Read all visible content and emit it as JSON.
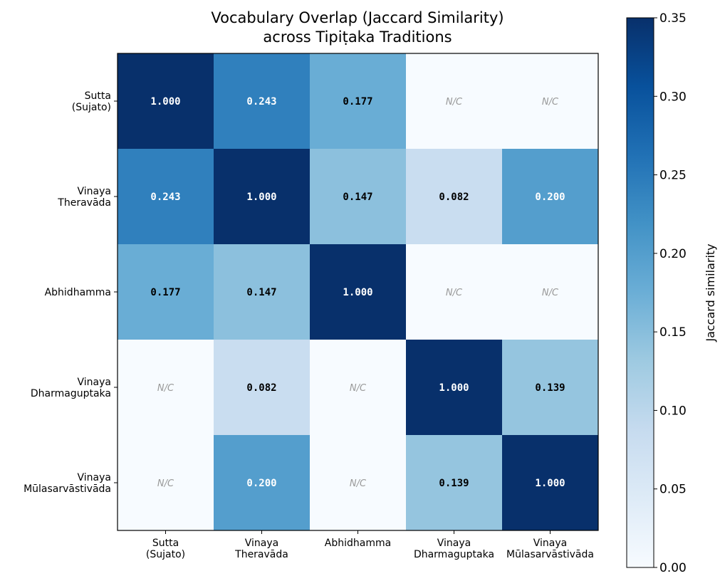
{
  "chart_data": {
    "type": "heatmap",
    "title": [
      "Vocabulary Overlap (Jaccard Similarity)",
      "across Tipiṭaka Traditions"
    ],
    "categories": [
      "Sutta\n(Sujato)",
      "Vinaya\nTheravāda",
      "Abhidhamma",
      "Vinaya\nDharmaguptaka",
      "Vinaya\nMūlasarvāstivāda"
    ],
    "values": [
      [
        1.0,
        0.243,
        0.177,
        null,
        null
      ],
      [
        0.243,
        1.0,
        0.147,
        0.082,
        0.2
      ],
      [
        0.177,
        0.147,
        1.0,
        null,
        null
      ],
      [
        null,
        0.082,
        null,
        1.0,
        0.139
      ],
      [
        null,
        0.2,
        null,
        0.139,
        1.0
      ]
    ],
    "value_labels": [
      [
        "1.000",
        "0.243",
        "0.177",
        "N/C",
        "N/C"
      ],
      [
        "0.243",
        "1.000",
        "0.147",
        "0.082",
        "0.200"
      ],
      [
        "0.177",
        "0.147",
        "1.000",
        "N/C",
        "N/C"
      ],
      [
        "N/C",
        "0.082",
        "N/C",
        "1.000",
        "0.139"
      ],
      [
        "N/C",
        "0.200",
        "N/C",
        "0.139",
        "1.000"
      ]
    ],
    "colormap": "Blues",
    "clim": [
      0,
      0.35
    ],
    "cticks": [
      {
        "value": 0,
        "label": "0.00"
      },
      {
        "value": 0.05,
        "label": "0.05"
      },
      {
        "value": 0.1,
        "label": "0.10"
      },
      {
        "value": 0.15,
        "label": "0.15"
      },
      {
        "value": 0.2,
        "label": "0.20"
      },
      {
        "value": 0.25,
        "label": "0.25"
      },
      {
        "value": 0.3,
        "label": "0.30"
      },
      {
        "value": 0.35,
        "label": "0.35"
      }
    ],
    "colorbar_label": "Jaccard similarity"
  }
}
